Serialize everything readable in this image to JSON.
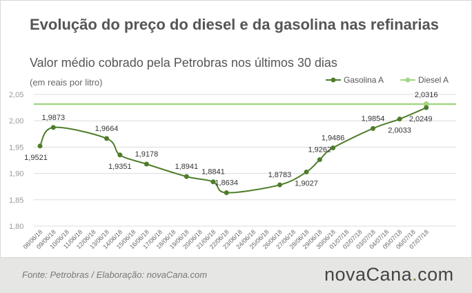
{
  "header": {
    "title": "Evolução do preço do diesel e da gasolina nas refinarias",
    "subtitle": "Valor médio cobrado pela Petrobras nos últimos 30 dias",
    "unit": "(em reais por litro)"
  },
  "footer": {
    "source": "Fonte: Petrobras / Elaboração: novaCana.com",
    "logo_main": "novaCana",
    "logo_dot": ".",
    "logo_tld": "com"
  },
  "colors": {
    "gasolina": "#4e7d2a",
    "diesel": "#a6d483",
    "grid": "#dcdcdc",
    "axis_text": "#999999"
  },
  "chart_data": {
    "type": "line",
    "xlabel": "",
    "ylabel": "",
    "ylim": [
      1.8,
      2.05
    ],
    "yticks": [
      "1,80",
      "1,85",
      "1,90",
      "1,95",
      "2,00",
      "2,05"
    ],
    "legend_position": "top-right",
    "categories": [
      "08/06/18",
      "09/06/18",
      "10/06/18",
      "11/06/18",
      "12/06/18",
      "13/06/18",
      "14/06/18",
      "15/06/18",
      "16/06/18",
      "17/06/18",
      "18/06/18",
      "19/06/18",
      "20/06/18",
      "21/06/18",
      "22/06/18",
      "23/06/18",
      "24/06/18",
      "25/06/18",
      "26/06/18",
      "27/06/18",
      "28/06/18",
      "29/06/18",
      "30/06/18",
      "01/07/18",
      "02/07/18",
      "03/07/18",
      "04/07/18",
      "05/07/18",
      "06/07/18",
      "07/07/18"
    ],
    "series": [
      {
        "name": "Gasolina A",
        "points": [
          {
            "x": "08/06/18",
            "y": 1.9521,
            "label": "1,9521"
          },
          {
            "x": "09/06/18",
            "y": 1.9873,
            "label": "1,9873"
          },
          {
            "x": "13/06/18",
            "y": 1.9664,
            "label": "1,9664"
          },
          {
            "x": "14/06/18",
            "y": 1.9351,
            "label": "1,9351"
          },
          {
            "x": "16/06/18",
            "y": 1.9178,
            "label": "1,9178"
          },
          {
            "x": "19/06/18",
            "y": 1.8941,
            "label": "1,8941"
          },
          {
            "x": "21/06/18",
            "y": 1.8841,
            "label": "1,8841"
          },
          {
            "x": "22/06/18",
            "y": 1.8634,
            "label": "1,8634"
          },
          {
            "x": "26/06/18",
            "y": 1.8783,
            "label": "1,8783"
          },
          {
            "x": "28/06/18",
            "y": 1.9027,
            "label": "1,9027"
          },
          {
            "x": "29/06/18",
            "y": 1.9262,
            "label": "1,9262"
          },
          {
            "x": "30/06/18",
            "y": 1.9486,
            "label": "1,9486"
          },
          {
            "x": "03/07/18",
            "y": 1.9854,
            "label": "1,9854"
          },
          {
            "x": "05/07/18",
            "y": 2.0033,
            "label": "2,0033"
          },
          {
            "x": "07/07/18",
            "y": 2.0249,
            "label": "2,0249"
          }
        ]
      },
      {
        "name": "Diesel A",
        "points": [
          {
            "x": "08/06/18",
            "y": 2.0316
          },
          {
            "x": "07/07/18",
            "y": 2.0316,
            "label": "2,0316"
          }
        ]
      }
    ]
  }
}
